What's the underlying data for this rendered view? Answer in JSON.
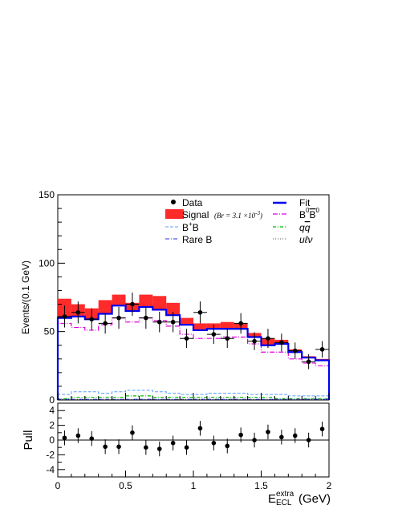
{
  "chart_data": [
    {
      "type": "histogram",
      "panel": "main",
      "x_range": [
        0,
        2
      ],
      "ylim": [
        0,
        150
      ],
      "ylabel": "Events/(0.1 GeV)",
      "y_ticks": [
        0,
        50,
        100,
        150
      ],
      "bin_edges": [
        0,
        0.1,
        0.2,
        0.3,
        0.4,
        0.5,
        0.6,
        0.7,
        0.8,
        0.9,
        1.0,
        1.1,
        1.2,
        1.3,
        1.4,
        1.5,
        1.6,
        1.7,
        1.8,
        1.9,
        2.0
      ],
      "data": {
        "name": "Data",
        "x": [
          0.05,
          0.15,
          0.25,
          0.35,
          0.45,
          0.55,
          0.65,
          0.75,
          0.85,
          0.95,
          1.05,
          1.15,
          1.25,
          1.35,
          1.45,
          1.55,
          1.65,
          1.75,
          1.85,
          1.95
        ],
        "y": [
          61,
          64,
          59,
          56,
          60,
          70,
          60,
          57,
          57,
          45,
          64,
          48,
          45,
          56,
          43,
          45,
          42,
          36,
          28,
          37
        ],
        "err": [
          8,
          8,
          8,
          7.5,
          8,
          8.5,
          8,
          7.5,
          7.5,
          7,
          8,
          7,
          7,
          7.5,
          6.5,
          7,
          6.5,
          6,
          5.5,
          6
        ]
      },
      "fit": {
        "name": "Fit",
        "values": [
          60,
          61,
          59,
          63,
          69,
          65,
          68,
          66,
          62,
          55,
          51,
          52,
          52,
          52,
          46,
          40,
          41,
          35,
          31,
          29
        ]
      },
      "signal": {
        "name": "Signal",
        "annotation": "(Br = 3.1 ×10",
        "values": [
          74,
          70,
          67,
          73,
          77,
          71,
          77,
          76,
          71,
          60,
          56,
          56,
          57,
          56,
          49,
          45,
          44,
          37,
          32,
          30
        ]
      },
      "b0b0bar": {
        "name": "B0B0",
        "values": [
          56,
          53,
          51,
          55,
          60,
          57,
          60,
          58,
          54,
          48,
          45,
          45,
          46,
          46,
          41,
          35,
          35,
          30,
          27,
          25
        ]
      },
      "bpbm": {
        "name": "B+B",
        "values": [
          4,
          6,
          6,
          5,
          6,
          7,
          7,
          6,
          5,
          4,
          4,
          5,
          5,
          5,
          4,
          4,
          4,
          3,
          3,
          3
        ]
      },
      "qqbar": {
        "name": "qq",
        "values": [
          1,
          2,
          2,
          2,
          2,
          3,
          3,
          2,
          2,
          2,
          2,
          2,
          2,
          2,
          2,
          2,
          1,
          1,
          1,
          1
        ]
      },
      "rareb": {
        "name": "Rare B",
        "values": [
          0.5,
          0.5,
          0.5,
          0.5,
          0.5,
          0.5,
          0.5,
          0.5,
          0.5,
          0.5,
          0.5,
          0.5,
          0.5,
          0.5,
          0.5,
          0.5,
          0.5,
          0.5,
          0.5,
          0.5
        ]
      },
      "ulnu": {
        "name": "uℓν",
        "values": [
          0.3,
          0.3,
          0.3,
          0.3,
          0.3,
          0.3,
          0.3,
          0.3,
          0.3,
          0.3,
          0.3,
          0.3,
          0.3,
          0.3,
          0.3,
          0.3,
          0.3,
          0.3,
          0.3,
          0.3
        ]
      },
      "colors": {
        "data": "#000000",
        "fit": "#0000ee",
        "signal": "#ff2a2a",
        "b0b0bar": "#dd00dd",
        "bpbm": "#5aa0ff",
        "qqbar": "#00bb00",
        "rareb": "#2233dd",
        "ulnu": "#555555"
      },
      "legend_placement": "top-right"
    },
    {
      "type": "scatter",
      "panel": "pull",
      "ylabel": "Pull",
      "ylim": [
        -5,
        5
      ],
      "y_ticks": [
        -4,
        -2,
        0,
        2,
        4
      ],
      "x_ticks": [
        "0",
        "0.5",
        "1",
        "1.5",
        "2"
      ],
      "xlabel_main": "E",
      "xlabel_sup": "extra",
      "xlabel_sub": "ECL",
      "xlabel_unit": "(GeV)",
      "x": [
        0.05,
        0.15,
        0.25,
        0.35,
        0.45,
        0.55,
        0.65,
        0.75,
        0.85,
        0.95,
        1.05,
        1.15,
        1.25,
        1.35,
        1.45,
        1.55,
        1.65,
        1.75,
        1.85,
        1.95
      ],
      "y": [
        0.3,
        0.6,
        0.2,
        -0.9,
        -0.9,
        1.0,
        -1.0,
        -1.2,
        -0.4,
        -1.0,
        1.6,
        -0.4,
        -0.8,
        0.7,
        0.0,
        1.1,
        0.4,
        0.6,
        0.0,
        1.5
      ],
      "err": [
        1,
        1,
        1,
        1,
        1,
        1,
        1,
        1,
        1,
        1,
        1,
        1,
        1,
        1,
        1,
        1,
        1,
        1,
        1,
        1
      ]
    }
  ],
  "legend": {
    "data": "Data",
    "fit": "Fit",
    "signal": "Signal",
    "signal_note_pre": "(Br = 3.1 ×10",
    "signal_note_exp": "-3",
    "signal_note_post": ")",
    "b0b0bar_base": "B",
    "b0b0bar_sup": "0",
    "b0b0bar_bar": "B",
    "b0b0bar_barsup": "0",
    "bpbm_base": "B",
    "bpbm_sup": "+",
    "bpbm_end": "B",
    "qqbar_q": "q",
    "qqbar_qbar": "q",
    "rareb": "Rare B",
    "ulnu": "uℓν"
  }
}
